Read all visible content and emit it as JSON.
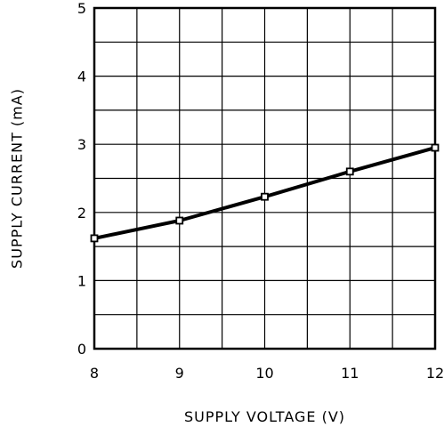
{
  "chart_data": {
    "type": "line",
    "xlabel": "SUPPLY VOLTAGE (V)",
    "ylabel": "SUPPLY CURRENT (mA)",
    "xlim": [
      8,
      12
    ],
    "ylim": [
      0,
      5
    ],
    "x_ticks": [
      "8",
      "9",
      "10",
      "11",
      "12"
    ],
    "y_ticks": [
      "0",
      "1",
      "2",
      "3",
      "4",
      "5"
    ],
    "x_minor_step": 0.5,
    "y_minor_step": 0.5,
    "grid": true,
    "series": [
      {
        "x": [
          8,
          9,
          10,
          11,
          12
        ],
        "y": [
          1.62,
          1.88,
          2.23,
          2.6,
          2.95
        ],
        "marker": "square",
        "color": "#000000"
      }
    ]
  }
}
